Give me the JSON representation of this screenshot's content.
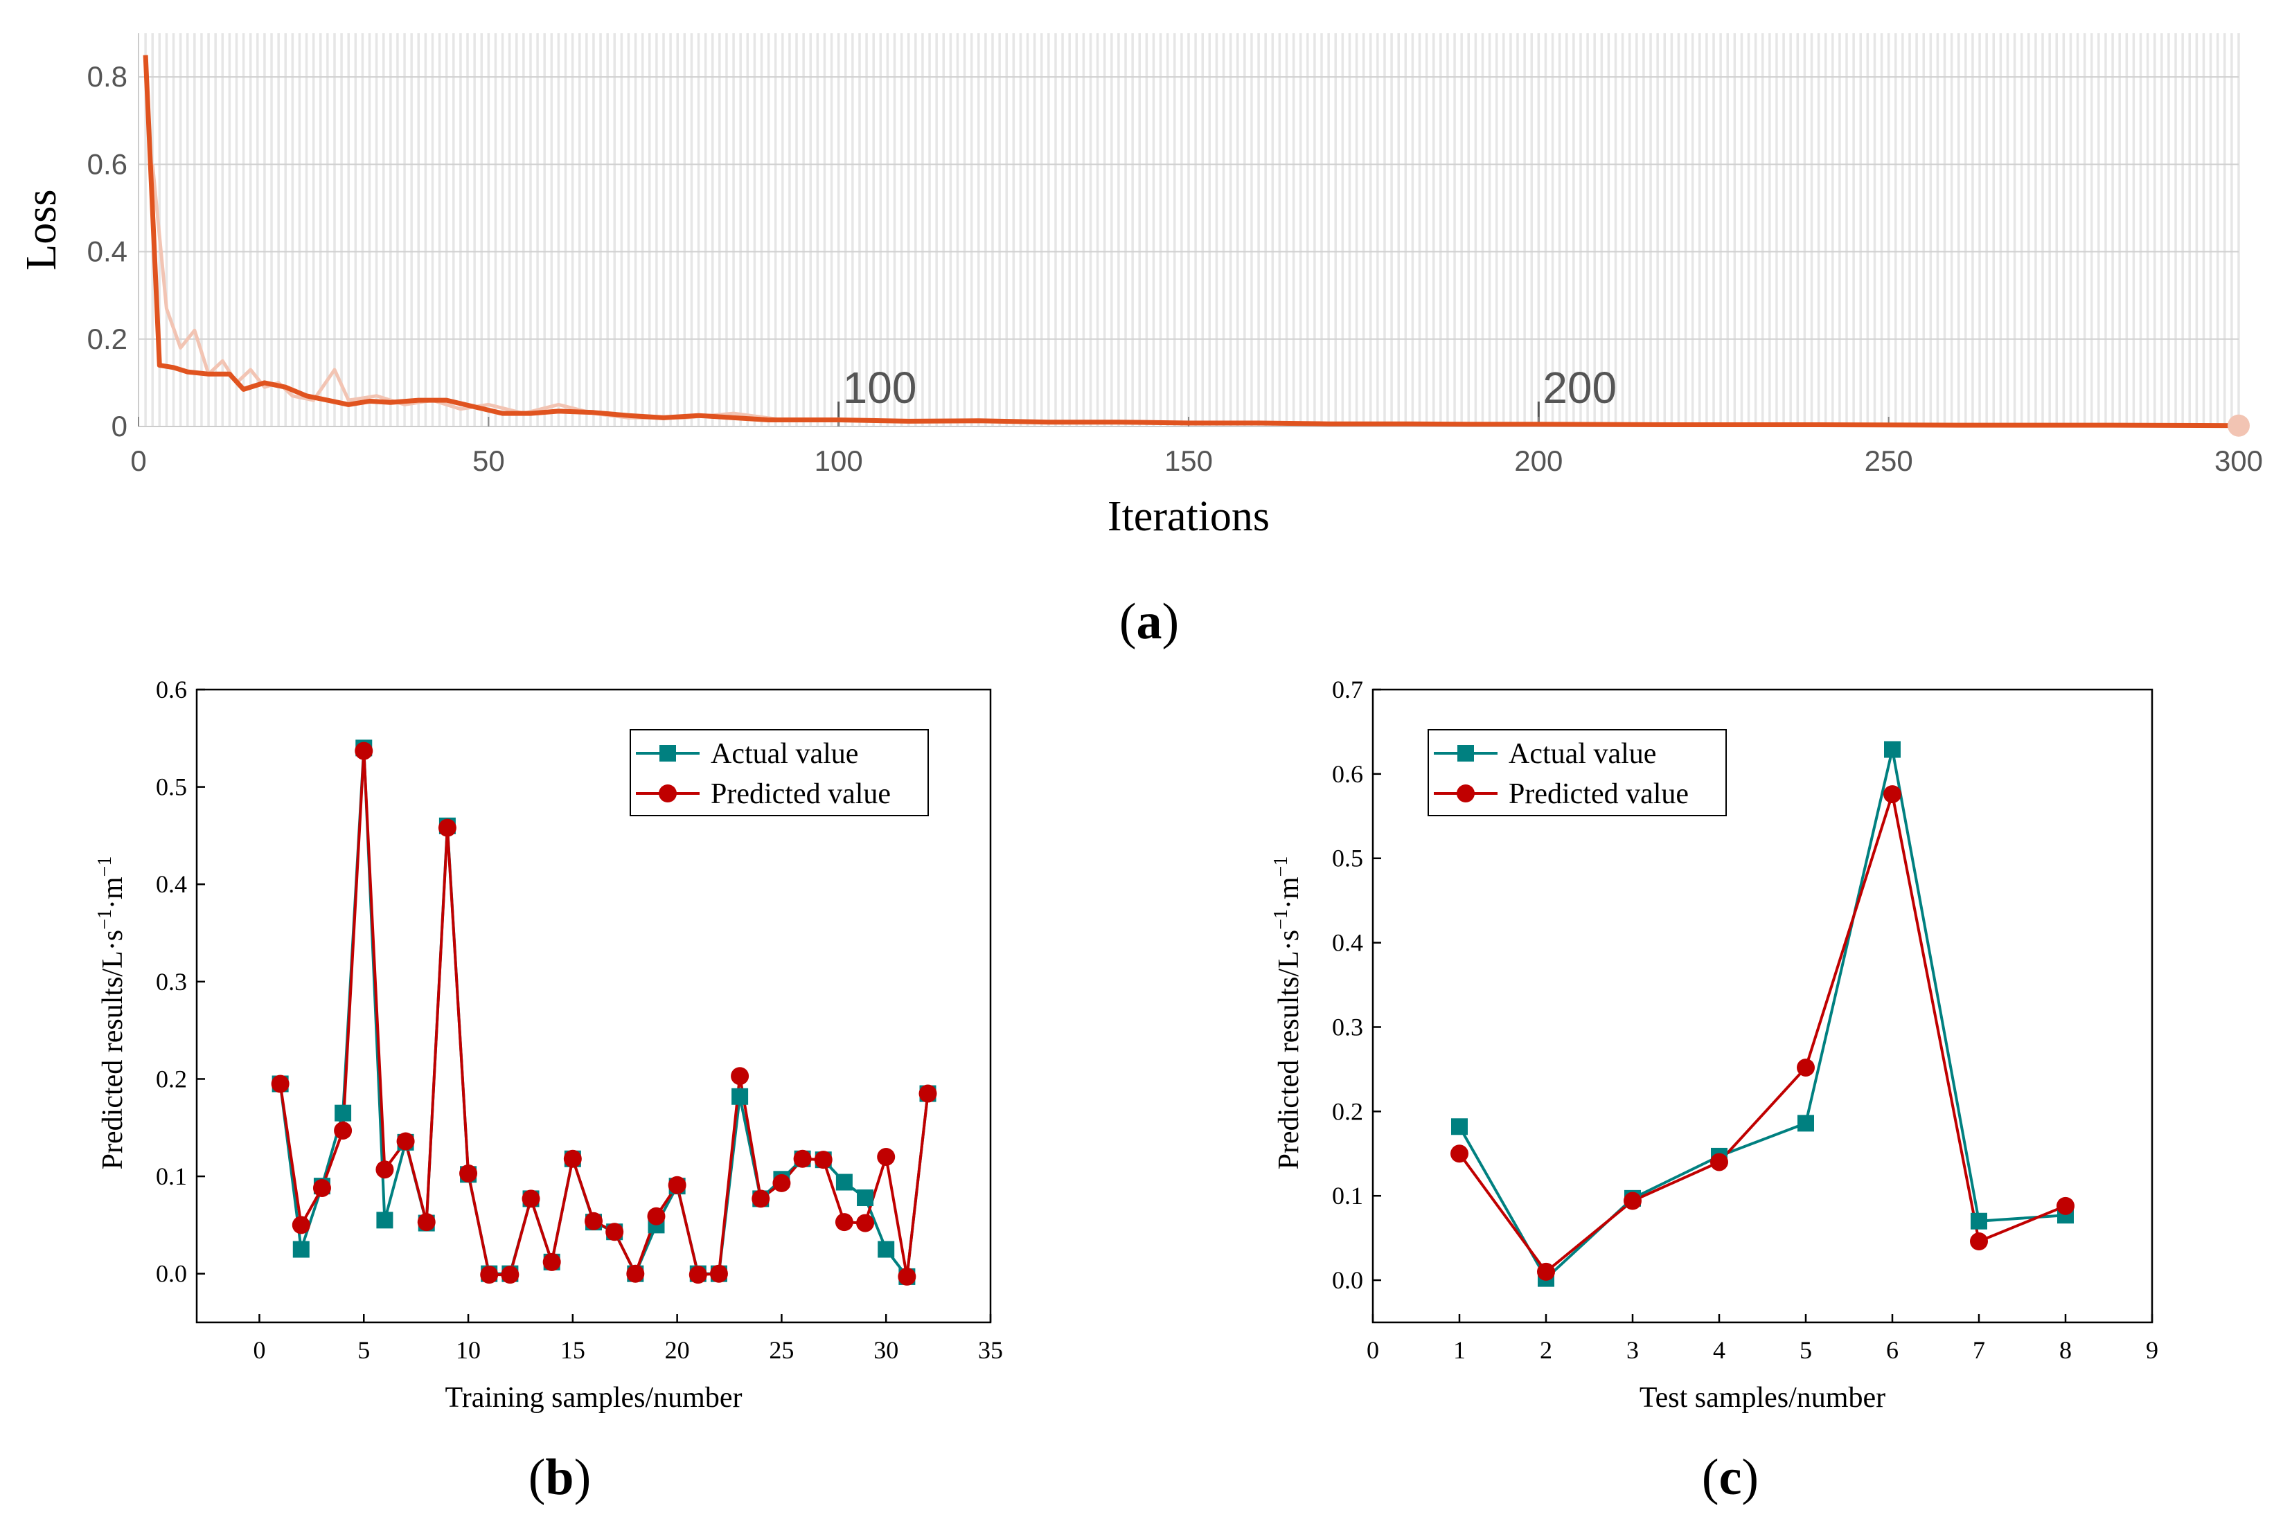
{
  "figure": {
    "panels": [
      {
        "label_open": "(",
        "label_letter": "a",
        "label_close": ")"
      },
      {
        "label_open": "(",
        "label_letter": "b",
        "label_close": ")"
      },
      {
        "label_open": "(",
        "label_letter": "c",
        "label_close": ")"
      }
    ]
  },
  "colors": {
    "loss_line": "#e0531f",
    "loss_raw": "#f2c4b3",
    "actual": "#008080",
    "predicted": "#c00000",
    "grid_band": "#e6e6e6"
  },
  "chart_data": [
    {
      "id": "a",
      "type": "line",
      "title": "",
      "xlabel": "Iterations",
      "ylabel": "Loss",
      "xlim": [
        0,
        300
      ],
      "ylim": [
        0,
        0.9
      ],
      "xticks": [
        0,
        50,
        100,
        150,
        200,
        250,
        300
      ],
      "yticks": [
        0,
        0.2,
        0.4,
        0.6,
        0.8
      ],
      "ytick_labels": [
        "0",
        "0.2",
        "0.4",
        "0.6",
        "0.8"
      ],
      "grid": true,
      "annotations": [
        "100",
        "200"
      ],
      "annotation_x": [
        100,
        200
      ],
      "series": [
        {
          "x": [
            1,
            3,
            5,
            7,
            10,
            13,
            15,
            18,
            21,
            24,
            27,
            30,
            33,
            36,
            40,
            44,
            48,
            52,
            56,
            60,
            65,
            70,
            75,
            80,
            85,
            90,
            95,
            100,
            110,
            120,
            130,
            140,
            150,
            160,
            170,
            180,
            190,
            200,
            220,
            240,
            260,
            280,
            300
          ],
          "y": [
            0.85,
            0.14,
            0.135,
            0.125,
            0.12,
            0.12,
            0.085,
            0.1,
            0.09,
            0.07,
            0.06,
            0.05,
            0.058,
            0.055,
            0.06,
            0.06,
            0.045,
            0.03,
            0.03,
            0.035,
            0.032,
            0.025,
            0.02,
            0.025,
            0.02,
            0.015,
            0.015,
            0.015,
            0.012,
            0.013,
            0.01,
            0.01,
            0.008,
            0.008,
            0.006,
            0.006,
            0.005,
            0.005,
            0.004,
            0.004,
            0.003,
            0.003,
            0.002
          ]
        }
      ],
      "raw_series": {
        "x": [
          2,
          4,
          6,
          8,
          10,
          12,
          14,
          16,
          18,
          20,
          22,
          25,
          28,
          30,
          34,
          38,
          42,
          46,
          50,
          55,
          60,
          65,
          70,
          78,
          85,
          92
        ],
        "y": [
          0.6,
          0.27,
          0.18,
          0.22,
          0.12,
          0.15,
          0.1,
          0.13,
          0.09,
          0.1,
          0.07,
          0.06,
          0.13,
          0.06,
          0.07,
          0.05,
          0.06,
          0.04,
          0.05,
          0.03,
          0.05,
          0.03,
          0.02,
          0.02,
          0.03,
          0.015
        ]
      }
    },
    {
      "id": "b",
      "type": "line",
      "title": "",
      "xlabel": "Training samples/number",
      "ylabel": "Predicted results/L·s",
      "ylabel_sup1": "−1",
      "ylabel_mid": "·m",
      "ylabel_sup2": "−1",
      "xlim": [
        -3,
        35
      ],
      "ylim": [
        -0.05,
        0.6
      ],
      "xticks": [
        0,
        5,
        10,
        15,
        20,
        25,
        30,
        35
      ],
      "yticks": [
        0.0,
        0.1,
        0.2,
        0.3,
        0.4,
        0.5,
        0.6
      ],
      "ytick_labels": [
        "0.0",
        "0.1",
        "0.2",
        "0.3",
        "0.4",
        "0.5",
        "0.6"
      ],
      "legend": "top-right",
      "x": [
        1,
        2,
        3,
        4,
        5,
        6,
        7,
        8,
        9,
        10,
        11,
        12,
        13,
        14,
        15,
        16,
        17,
        18,
        19,
        20,
        21,
        22,
        23,
        24,
        25,
        26,
        27,
        28,
        29,
        30,
        31,
        32
      ],
      "series": [
        {
          "name": "Actual value",
          "marker": "square",
          "values": [
            0.195,
            0.025,
            0.09,
            0.165,
            0.54,
            0.055,
            0.135,
            0.052,
            0.46,
            0.102,
            0.0,
            0.0,
            0.077,
            0.012,
            0.118,
            0.053,
            0.043,
            0.0,
            0.05,
            0.09,
            0.0,
            0.0,
            0.182,
            0.077,
            0.097,
            0.118,
            0.117,
            0.094,
            0.078,
            0.025,
            -0.003,
            0.185
          ]
        },
        {
          "name": "Predicted value",
          "marker": "circle",
          "values": [
            0.195,
            0.05,
            0.088,
            0.147,
            0.537,
            0.107,
            0.136,
            0.053,
            0.458,
            0.103,
            -0.001,
            -0.001,
            0.077,
            0.012,
            0.118,
            0.054,
            0.043,
            0.0,
            0.059,
            0.091,
            -0.001,
            0.0,
            0.203,
            0.077,
            0.093,
            0.118,
            0.117,
            0.053,
            0.052,
            0.12,
            -0.003,
            0.185
          ]
        }
      ]
    },
    {
      "id": "c",
      "type": "line",
      "title": "",
      "xlabel": "Test samples/number",
      "ylabel": "Predicted results/L·s",
      "ylabel_sup1": "−1",
      "ylabel_mid": "·m",
      "ylabel_sup2": "−1",
      "xlim": [
        0,
        9
      ],
      "ylim": [
        -0.05,
        0.7
      ],
      "xticks": [
        0,
        1,
        2,
        3,
        4,
        5,
        6,
        7,
        8,
        9
      ],
      "yticks": [
        0.0,
        0.1,
        0.2,
        0.3,
        0.4,
        0.5,
        0.6,
        0.7
      ],
      "ytick_labels": [
        "0.0",
        "0.1",
        "0.2",
        "0.3",
        "0.4",
        "0.5",
        "0.6",
        "0.7"
      ],
      "legend": "top-left",
      "x": [
        1,
        2,
        3,
        4,
        5,
        6,
        7,
        8
      ],
      "series": [
        {
          "name": "Actual value",
          "marker": "square",
          "values": [
            0.182,
            0.002,
            0.097,
            0.147,
            0.186,
            0.629,
            0.07,
            0.077
          ]
        },
        {
          "name": "Predicted value",
          "marker": "circle",
          "values": [
            0.15,
            0.01,
            0.094,
            0.14,
            0.252,
            0.576,
            0.046,
            0.088
          ]
        }
      ]
    }
  ]
}
